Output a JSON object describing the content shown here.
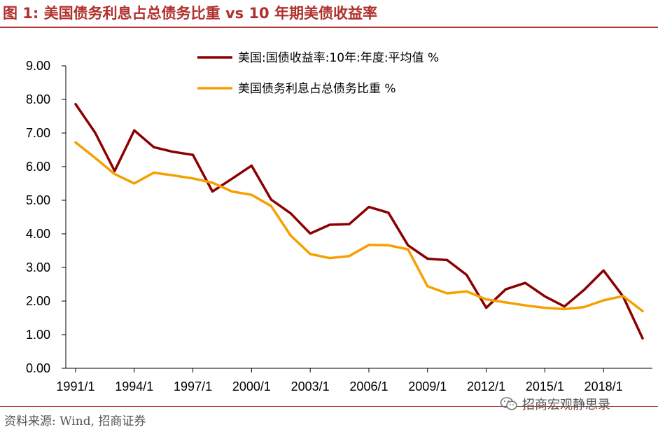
{
  "header": {
    "title": "图 1:  美国债务利息占总债务比重  vs 10 年期美债收益率"
  },
  "footer": {
    "source": "资料来源:  Wind,  招商证券",
    "watermark": "招商宏观静思录"
  },
  "chart_data": {
    "type": "line",
    "title": "美国债务利息占总债务比重  vs 10 年期美债收益率",
    "x": [
      "1991/1",
      "1992/1",
      "1993/1",
      "1994/1",
      "1995/1",
      "1996/1",
      "1997/1",
      "1998/1",
      "1999/1",
      "2000/1",
      "2001/1",
      "2002/1",
      "2003/1",
      "2004/1",
      "2005/1",
      "2006/1",
      "2007/1",
      "2008/1",
      "2009/1",
      "2010/1",
      "2011/1",
      "2012/1",
      "2013/1",
      "2014/1",
      "2015/1",
      "2016/1",
      "2017/1",
      "2018/1",
      "2019/1",
      "2020/1"
    ],
    "x_tick_labels": [
      "1991/1",
      "1994/1",
      "1997/1",
      "2000/1",
      "2003/1",
      "2006/1",
      "2009/1",
      "2012/1",
      "2015/1",
      "2018/1"
    ],
    "y_tick_labels": [
      "0.00",
      "1.00",
      "2.00",
      "3.00",
      "4.00",
      "5.00",
      "6.00",
      "7.00",
      "8.00",
      "9.00"
    ],
    "ylim": [
      0,
      9
    ],
    "grid": false,
    "legend_position": "top",
    "series": [
      {
        "name": "美国:国债收益率:10年:年度:平均值 %",
        "color": "#8b0000",
        "values": [
          7.86,
          7.01,
          5.87,
          7.08,
          6.58,
          6.44,
          6.35,
          5.26,
          5.64,
          6.03,
          5.02,
          4.61,
          4.01,
          4.27,
          4.29,
          4.8,
          4.63,
          3.66,
          3.26,
          3.22,
          2.78,
          1.8,
          2.35,
          2.54,
          2.14,
          1.84,
          2.33,
          2.91,
          2.14,
          0.89
        ]
      },
      {
        "name": "美国债务利息占总债务比重 %",
        "color": "#f5a000",
        "values": [
          6.72,
          6.26,
          5.78,
          5.5,
          5.82,
          5.74,
          5.65,
          5.52,
          5.26,
          5.16,
          4.83,
          3.95,
          3.4,
          3.28,
          3.34,
          3.67,
          3.66,
          3.54,
          2.44,
          2.23,
          2.29,
          2.05,
          1.96,
          1.87,
          1.8,
          1.76,
          1.82,
          2.02,
          2.15,
          1.7
        ]
      }
    ]
  }
}
